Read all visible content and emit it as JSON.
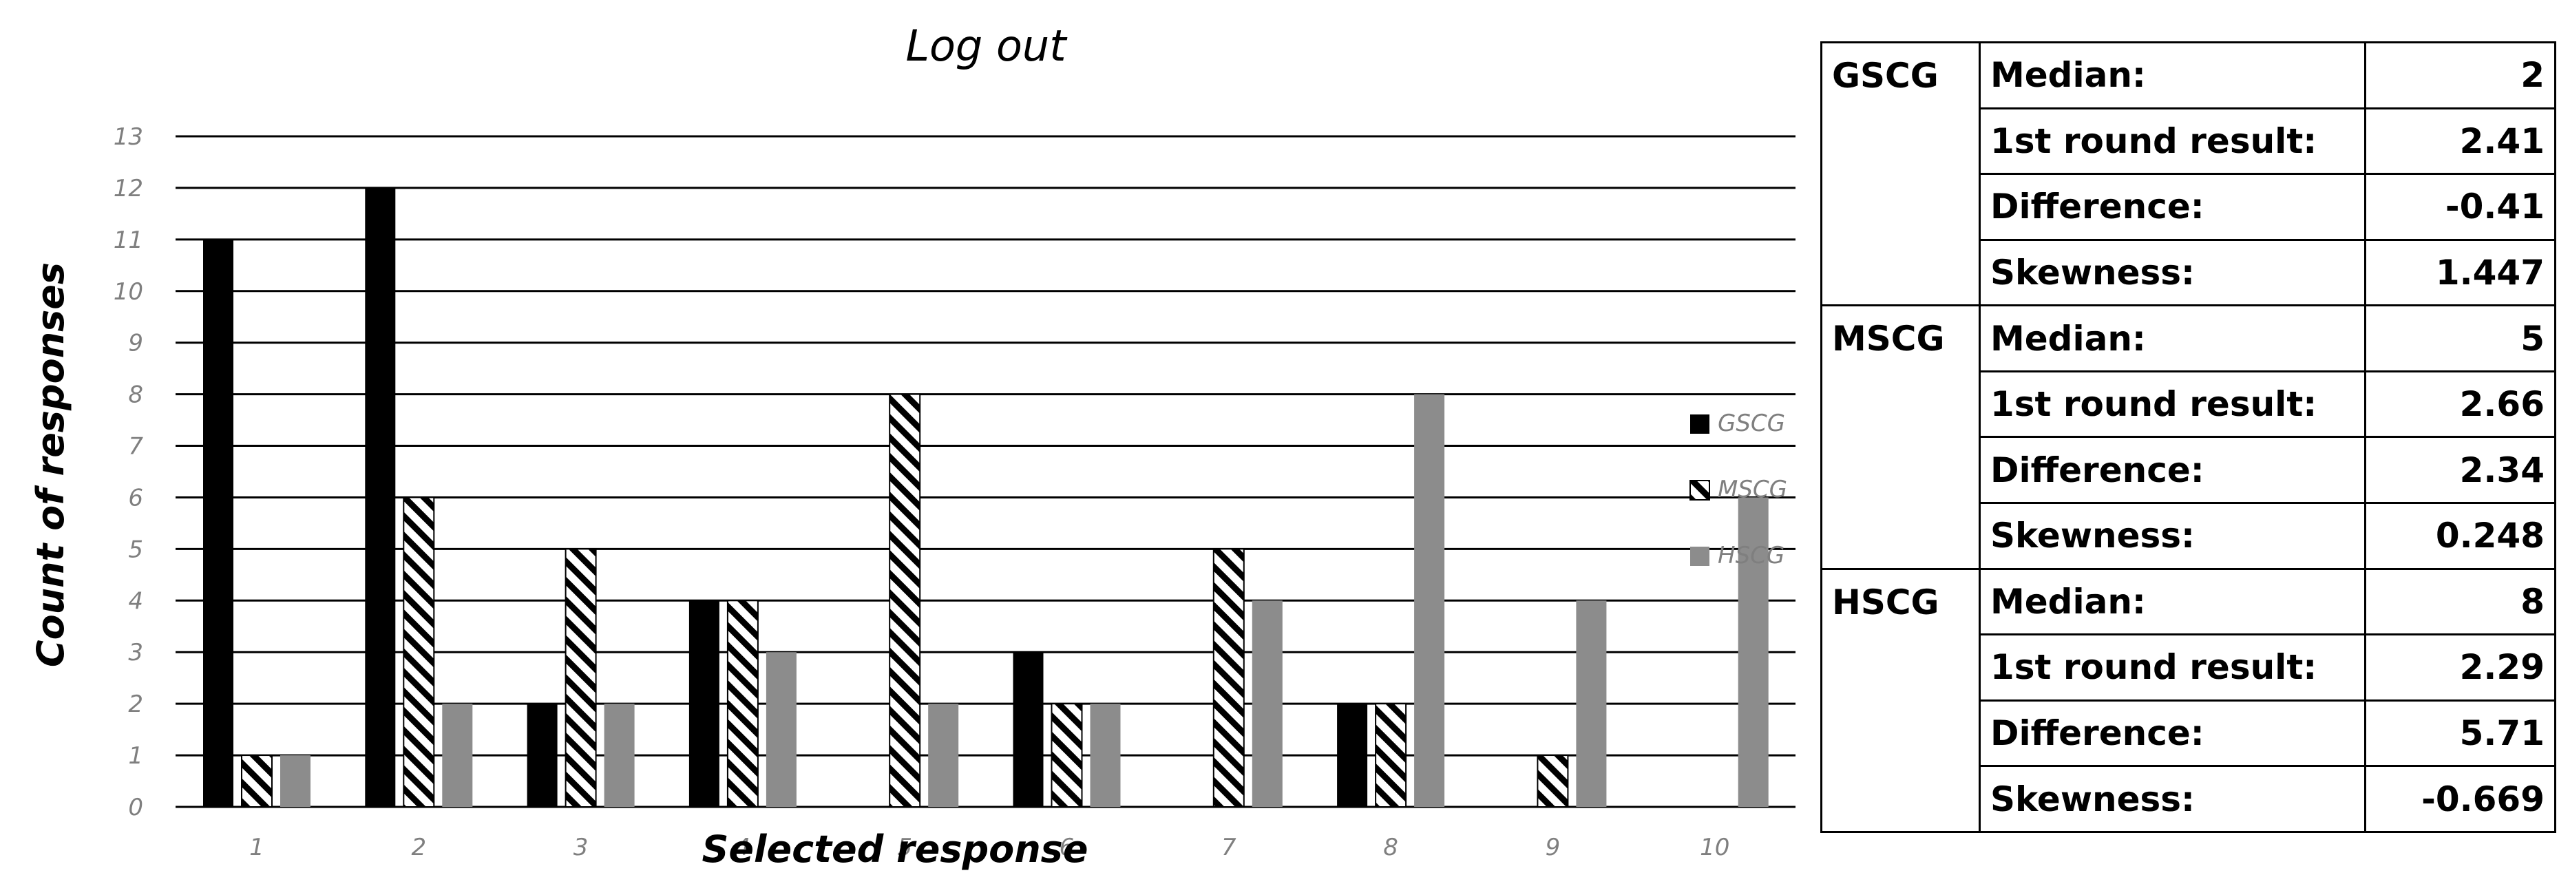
{
  "chart_data": {
    "type": "bar",
    "title": "Log out",
    "xlabel": "Selected response",
    "ylabel": "Count of responses",
    "categories": [
      "1",
      "2",
      "3",
      "4",
      "5",
      "6",
      "7",
      "8",
      "9",
      "10"
    ],
    "ylim": [
      0,
      13
    ],
    "yticks": [
      "0",
      "1",
      "2",
      "3",
      "4",
      "5",
      "6",
      "7",
      "8",
      "9",
      "10",
      "11",
      "12",
      "13"
    ],
    "grid": true,
    "legend_position": "right",
    "series": [
      {
        "name": "GSCG",
        "values": [
          11,
          12,
          2,
          4,
          0,
          3,
          0,
          2,
          0,
          0
        ],
        "color": "#000000",
        "pattern": "solid"
      },
      {
        "name": "MSCG",
        "values": [
          1,
          6,
          5,
          4,
          8,
          2,
          5,
          2,
          1,
          0
        ],
        "color": "#000000",
        "pattern": "diagonal-hatch"
      },
      {
        "name": "HSCG",
        "values": [
          1,
          2,
          2,
          3,
          2,
          2,
          4,
          8,
          4,
          6
        ],
        "color": "#8c8c8c",
        "pattern": "solid"
      }
    ]
  },
  "stats_table": {
    "groups": [
      {
        "name": "GSCG",
        "rows": [
          {
            "label": "Median:",
            "value": "2"
          },
          {
            "label": "1st round result:",
            "value": "2.41"
          },
          {
            "label": "Difference:",
            "value": "-0.41"
          },
          {
            "label": "Skewness:",
            "value": "1.447"
          }
        ]
      },
      {
        "name": "MSCG",
        "rows": [
          {
            "label": "Median:",
            "value": "5"
          },
          {
            "label": "1st round result:",
            "value": "2.66"
          },
          {
            "label": "Difference:",
            "value": "2.34"
          },
          {
            "label": "Skewness:",
            "value": "0.248"
          }
        ]
      },
      {
        "name": "HSCG",
        "rows": [
          {
            "label": "Median:",
            "value": "8"
          },
          {
            "label": "1st round result:",
            "value": "2.29"
          },
          {
            "label": "Difference:",
            "value": "5.71"
          },
          {
            "label": "Skewness:",
            "value": "-0.669"
          }
        ]
      }
    ]
  }
}
